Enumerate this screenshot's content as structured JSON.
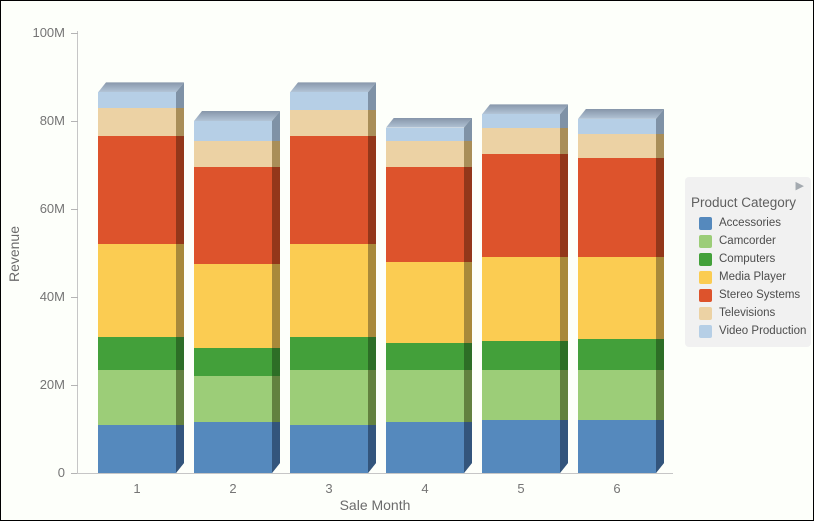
{
  "chart_data": {
    "type": "bar",
    "stacked": true,
    "unit": "millions",
    "title": "",
    "xlabel": "Sale Month",
    "ylabel": "Revenue",
    "categories": [
      "1",
      "2",
      "3",
      "4",
      "5",
      "6"
    ],
    "series": [
      {
        "name": "Accessories",
        "color": "#5589bd",
        "side_color": "#33557c",
        "values": [
          11,
          11.5,
          11,
          11.5,
          12,
          12
        ]
      },
      {
        "name": "Camcorder",
        "color": "#9ccd78",
        "side_color": "#62813f",
        "values": [
          12.5,
          10.5,
          12.5,
          12,
          11.5,
          11.5
        ]
      },
      {
        "name": "Computers",
        "color": "#43a03a",
        "side_color": "#2d6e26",
        "values": [
          7.5,
          6.5,
          7.5,
          6,
          6.5,
          7
        ]
      },
      {
        "name": "Media Player",
        "color": "#fbcc52",
        "side_color": "#a8893a",
        "values": [
          21,
          19,
          21,
          18.5,
          19,
          18.5
        ]
      },
      {
        "name": "Stereo Systems",
        "color": "#dd532c",
        "side_color": "#93371a",
        "values": [
          24.5,
          22,
          24.5,
          21.5,
          23.5,
          22.5
        ]
      },
      {
        "name": "Televisions",
        "color": "#ecd2a4",
        "side_color": "#a98e58",
        "values": [
          6.5,
          6,
          6,
          6,
          6,
          5.5
        ]
      },
      {
        "name": "Video Production",
        "color": "#b6cfe6",
        "side_color": "#7f92a6",
        "values": [
          3.5,
          4.5,
          4,
          3,
          3,
          3.5
        ]
      }
    ],
    "ylim": [
      0,
      100000000
    ],
    "ytick_labels": [
      "0",
      "20M",
      "40M",
      "60M",
      "80M",
      "100M"
    ],
    "grid": false,
    "legend_position": "right",
    "legend_title": "Product Category"
  },
  "legend": {
    "title": "Product Category",
    "expander_icon": "▶"
  },
  "axes": {
    "x_title": "Sale Month",
    "y_title": "Revenue"
  }
}
